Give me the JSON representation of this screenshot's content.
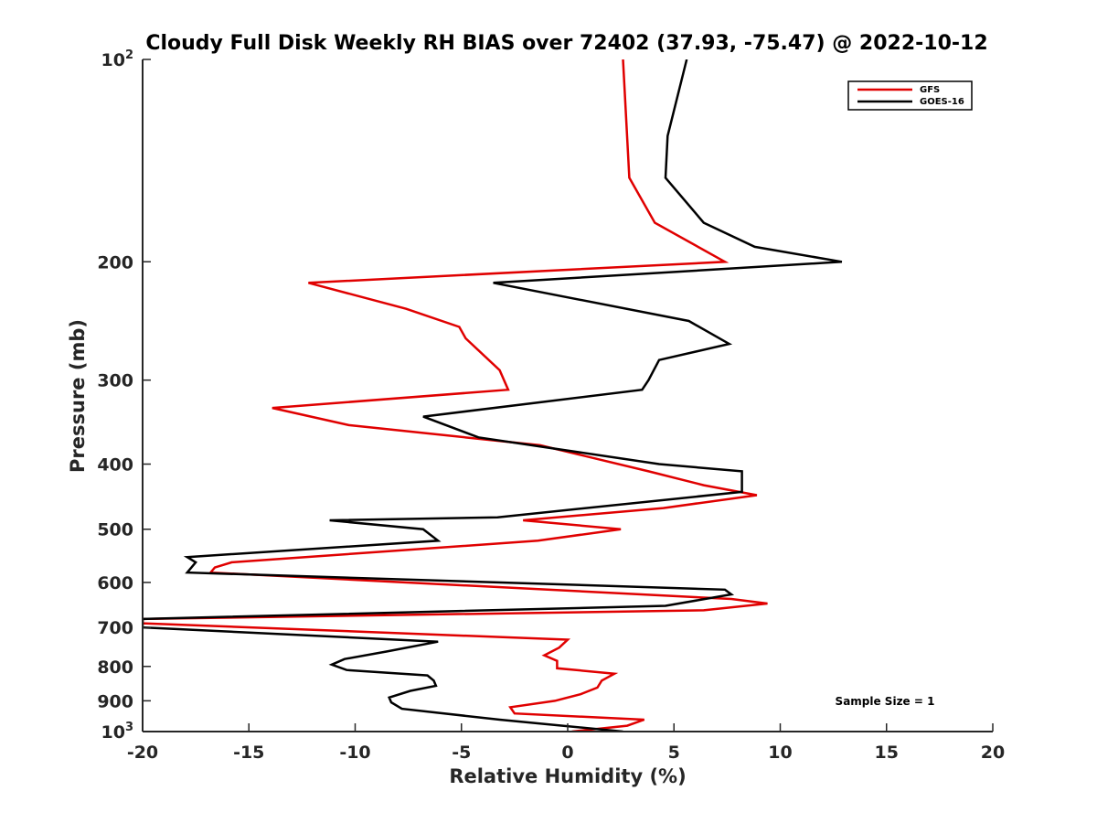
{
  "chart_data": {
    "type": "line",
    "title": "Cloudy Full Disk Weekly RH BIAS over 72402 (37.93, -75.47) @ 2022-10-12",
    "xlabel": "Relative Humidity (%)",
    "ylabel": "Pressure (mb)",
    "xlim": [
      -20,
      20
    ],
    "ylim": [
      100,
      1000
    ],
    "y_scale": "log",
    "y_reversed": true,
    "grid": false,
    "legend_position": "top-right",
    "x_ticks": [
      -20,
      -15,
      -10,
      -5,
      0,
      5,
      10,
      15,
      20
    ],
    "x_tick_labels": [
      "-20",
      "-15",
      "-10",
      "-5",
      "0",
      "5",
      "10",
      "15",
      "20"
    ],
    "y_ticks": [
      100,
      200,
      300,
      400,
      500,
      600,
      700,
      800,
      900,
      1000
    ],
    "y_tick_labels": [
      {
        "base": "10",
        "exp": "2"
      },
      {
        "base": "200"
      },
      {
        "base": "300"
      },
      {
        "base": "400"
      },
      {
        "base": "500"
      },
      {
        "base": "600"
      },
      {
        "base": "700"
      },
      {
        "base": "800"
      },
      {
        "base": "900"
      },
      {
        "base": "10",
        "exp": "3"
      }
    ],
    "annotation": "Sample Size = 1",
    "series": [
      {
        "name": "GFS",
        "color": "#e00000",
        "points": [
          [
            2.6,
            100
          ],
          [
            2.9,
            150
          ],
          [
            4.1,
            175
          ],
          [
            7.4,
            200
          ],
          [
            -12.2,
            215
          ],
          [
            -7.6,
            235
          ],
          [
            -5.1,
            250
          ],
          [
            -4.8,
            260
          ],
          [
            -3.2,
            290
          ],
          [
            -2.8,
            310
          ],
          [
            -13.9,
            330
          ],
          [
            -10.3,
            350
          ],
          [
            -1.3,
            375
          ],
          [
            3.8,
            410
          ],
          [
            6.4,
            430
          ],
          [
            8.9,
            445
          ],
          [
            4.5,
            465
          ],
          [
            -2.1,
            485
          ],
          [
            2.5,
            500
          ],
          [
            -1.4,
            520
          ],
          [
            -15.8,
            560
          ],
          [
            -16.6,
            570
          ],
          [
            -16.8,
            580
          ],
          [
            7.7,
            635
          ],
          [
            9.4,
            645
          ],
          [
            6.4,
            660
          ],
          [
            -20,
            680
          ],
          [
            -20,
            690
          ],
          [
            0,
            730
          ],
          [
            -0.4,
            750
          ],
          [
            -1.1,
            770
          ],
          [
            -0.5,
            785
          ],
          [
            -0.5,
            805
          ],
          [
            2.2,
            820
          ],
          [
            1.6,
            840
          ],
          [
            1.4,
            860
          ],
          [
            0.6,
            880
          ],
          [
            -0.6,
            900
          ],
          [
            -2.7,
            920
          ],
          [
            -2.5,
            940
          ],
          [
            3.6,
            960
          ],
          [
            2.8,
            980
          ],
          [
            0.2,
            1000
          ]
        ]
      },
      {
        "name": "GOES-16",
        "color": "#000000",
        "points": [
          [
            5.6,
            100
          ],
          [
            4.7,
            130
          ],
          [
            4.6,
            150
          ],
          [
            6.4,
            175
          ],
          [
            8.8,
            190
          ],
          [
            12.9,
            200
          ],
          [
            -3.5,
            215
          ],
          [
            5.7,
            245
          ],
          [
            7.6,
            265
          ],
          [
            4.3,
            280
          ],
          [
            3.8,
            300
          ],
          [
            3.5,
            310
          ],
          [
            -6.8,
            340
          ],
          [
            -4.2,
            365
          ],
          [
            4.3,
            400
          ],
          [
            8.2,
            410
          ],
          [
            8.2,
            440
          ],
          [
            -3.3,
            480
          ],
          [
            -11.2,
            485
          ],
          [
            -6.8,
            500
          ],
          [
            -6.1,
            520
          ],
          [
            -17.9,
            550
          ],
          [
            -17.5,
            560
          ],
          [
            -17.9,
            580
          ],
          [
            7.4,
            615
          ],
          [
            7.7,
            625
          ],
          [
            4.6,
            650
          ],
          [
            -20,
            680
          ],
          [
            -20,
            700
          ],
          [
            -6.1,
            735
          ],
          [
            -8.5,
            760
          ],
          [
            -10.5,
            780
          ],
          [
            -11.1,
            795
          ],
          [
            -10.4,
            810
          ],
          [
            -6.6,
            825
          ],
          [
            -6.3,
            840
          ],
          [
            -6.2,
            855
          ],
          [
            -7.4,
            870
          ],
          [
            -8.4,
            890
          ],
          [
            -8.3,
            905
          ],
          [
            -7.8,
            925
          ],
          [
            -3.2,
            960
          ],
          [
            2.6,
            1000
          ]
        ]
      }
    ]
  }
}
